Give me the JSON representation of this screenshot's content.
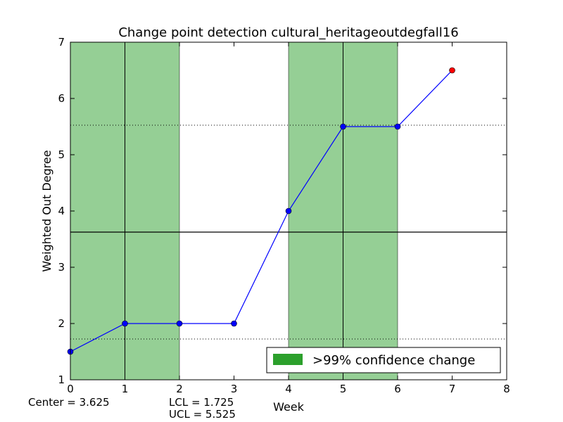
{
  "chart_data": {
    "type": "line",
    "title": "Change point detection cultural_heritageoutdegfall16",
    "xlabel": "Week",
    "ylabel": "Weighted Out Degree",
    "xlim": [
      0,
      8
    ],
    "ylim": [
      1,
      7
    ],
    "xticks": [
      "0",
      "1",
      "2",
      "3",
      "4",
      "5",
      "6",
      "7",
      "8"
    ],
    "yticks": [
      "1",
      "2",
      "3",
      "4",
      "5",
      "6",
      "7"
    ],
    "series": [
      {
        "x": [
          0,
          1,
          2,
          3,
          4,
          5,
          6,
          7
        ],
        "values": [
          1.5,
          2.0,
          2.0,
          2.0,
          4.0,
          5.5,
          5.5,
          6.5
        ],
        "color": "#0000ff",
        "last_point_color": "#ff0000"
      }
    ],
    "center_line": 3.625,
    "lcl": 1.725,
    "ucl": 5.525,
    "change_regions": [
      [
        0,
        2
      ],
      [
        4,
        6
      ]
    ],
    "change_points": [
      1,
      5
    ],
    "region_color": "#2ca02c",
    "legend": {
      "label": ">99% confidence change",
      "placement": "bottom-right"
    },
    "annotations": {
      "center": "Center = 3.625",
      "lcl": "LCL = 1.725",
      "ucl": "UCL = 5.525"
    }
  }
}
